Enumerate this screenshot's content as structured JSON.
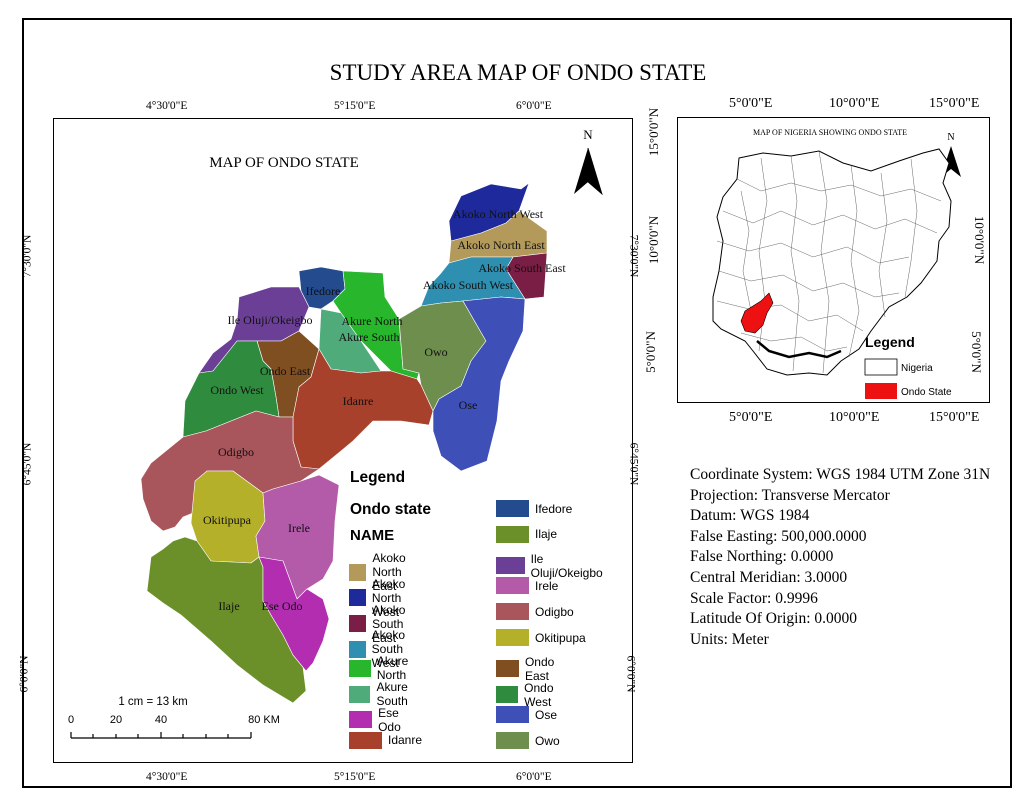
{
  "title": "STUDY AREA MAP OF ONDO STATE",
  "main_map": {
    "title": "MAP OF ONDO STATE",
    "north_label": "N",
    "top_ticks": [
      "4°30'0\"E",
      "5°15'0\"E",
      "6°0'0\"E"
    ],
    "bottom_ticks": [
      "4°30'0\"E",
      "5°15'0\"E",
      "6°0'0\"E"
    ],
    "left_ticks": [
      "7°30'0\"N",
      "6°45'0\"N",
      "6°0'0\"N"
    ],
    "right_ticks": [
      "7°30'0\"N",
      "6°45'0\"N",
      "6°0'0\"N"
    ],
    "scale": {
      "ratio": "1 cm = 13 km",
      "labels": [
        "0",
        "20",
        "40",
        "80 KM"
      ]
    },
    "lga_labels": {
      "akoko_north_west": "Akoko North West",
      "akoko_north_east": "Akoko North East",
      "akoko_south_east": "Akoko South East",
      "akoko_south_west": "Akoko South West",
      "ifedore": "Ifedore",
      "akure_north": "Akure North",
      "akure_south": "Akure South",
      "ile_oluji": "Ile Oluji/Okeigbo",
      "owo": "Owo",
      "ondo_east": "Ondo East",
      "ondo_west": "Ondo West",
      "idanre": "Idanre",
      "ose": "Ose",
      "odigbo": "Odigbo",
      "okitipupa": "Okitipupa",
      "irele": "Irele",
      "ilaje": "Ilaje",
      "ese_odo": "Ese Odo"
    },
    "colors": {
      "akoko_north_west": "#1e2a9b",
      "akoko_north_east": "#b39a5a",
      "akoko_south_east": "#7a1e45",
      "akoko_south_west": "#2f8fb0",
      "ifedore": "#234b8e",
      "akure_north": "#28b62c",
      "akure_south": "#4fab79",
      "ile_oluji": "#6c3f96",
      "owo": "#6e8e4e",
      "ondo_east": "#7f4f22",
      "ondo_west": "#2f8c3f",
      "idanre": "#a8412c",
      "ose": "#3e4fb8",
      "odigbo": "#a8565c",
      "okitipupa": "#b5b02a",
      "irele": "#b35aa8",
      "ilaje": "#6b902a",
      "ese_odo": "#b22db0"
    }
  },
  "legend": {
    "title": "Legend",
    "subtitle": "Ondo state",
    "field": "NAME",
    "col1": [
      {
        "label": "Akoko North East",
        "color": "#b39a5a"
      },
      {
        "label": "Akoko North West",
        "color": "#1e2a9b"
      },
      {
        "label": "Akoko South East",
        "color": "#7a1e45"
      },
      {
        "label": "Akoko South West",
        "color": "#2f8fb0"
      },
      {
        "label": "Akure North",
        "color": "#28b62c"
      },
      {
        "label": "Akure South",
        "color": "#4fab79"
      },
      {
        "label": "Ese Odo",
        "color": "#b22db0"
      },
      {
        "label": "Idanre",
        "color": "#a8412c"
      }
    ],
    "col2": [
      {
        "label": "Ifedore",
        "color": "#234b8e"
      },
      {
        "label": "Ilaje",
        "color": "#6b902a"
      },
      {
        "label": "Ile Oluji/Okeigbo",
        "color": "#6c3f96"
      },
      {
        "label": "Irele",
        "color": "#b35aa8"
      },
      {
        "label": "Odigbo",
        "color": "#a8565c"
      },
      {
        "label": "Okitipupa",
        "color": "#b5b02a"
      },
      {
        "label": "Ondo East",
        "color": "#7f4f22"
      },
      {
        "label": "Ondo West",
        "color": "#2f8c3f"
      },
      {
        "label": "Ose",
        "color": "#3e4fb8"
      },
      {
        "label": "Owo",
        "color": "#6e8e4e"
      }
    ]
  },
  "inset": {
    "title": "MAP OF NIGERIA SHOWING ONDO STATE",
    "north_label": "N",
    "top_ticks": [
      "5°0'0\"E",
      "10°0'0\"E",
      "15°0'0\"E"
    ],
    "bottom_ticks": [
      "5°0'0\"E",
      "10°0'0\"E",
      "15°0'0\"E"
    ],
    "left_ticks": [
      "15°0'0\"N",
      "10°0'0\"N",
      "5°0'0\"N"
    ],
    "right_ticks": [
      "10°0'0\"N",
      "5°0'0\"N"
    ],
    "legend_title": "Legend",
    "legend_items": [
      {
        "label": "Nigeria",
        "color": "#ffffff"
      },
      {
        "label": "Ondo State",
        "color": "#ee1111"
      }
    ]
  },
  "info_lines": [
    "Coordinate System: WGS 1984 UTM Zone 31N",
    "Projection: Transverse Mercator",
    "Datum: WGS 1984",
    "False Easting: 500,000.0000",
    "False Northing: 0.0000",
    "Central Meridian: 3.0000",
    "Scale Factor: 0.9996",
    "Latitude Of Origin: 0.0000",
    "Units: Meter"
  ]
}
